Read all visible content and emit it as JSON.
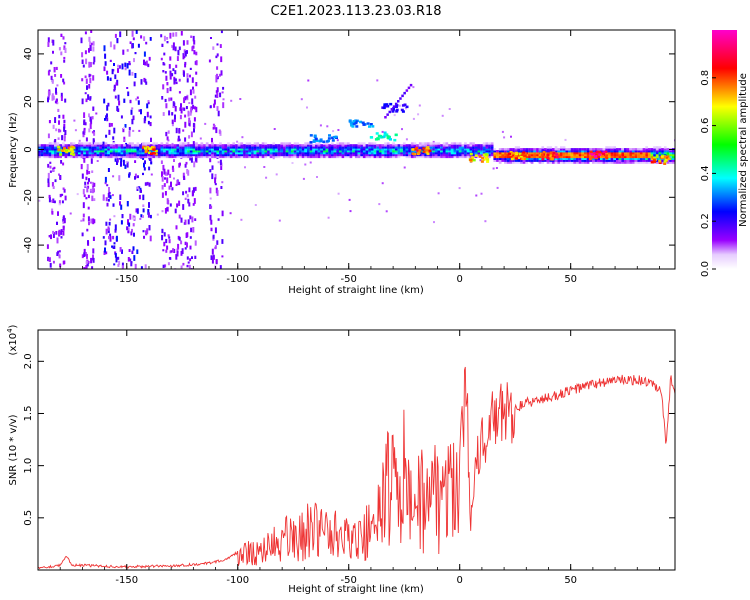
{
  "title": "C2E1.2023.113.23.03.R18",
  "colorbar": {
    "label": "Normalized spectral amplitude",
    "ticks": [
      "0.0",
      "0.2",
      "0.4",
      "0.6",
      "0.8"
    ],
    "tick_values": [
      0.0,
      0.2,
      0.4,
      0.6,
      0.8
    ],
    "range": [
      0,
      1
    ],
    "gradient": [
      "#ffffff",
      "#e6ccff",
      "#9900ff",
      "#0000ff",
      "#00ffff",
      "#00ff00",
      "#ffff00",
      "#ff0000",
      "#ff00cc"
    ]
  },
  "chart_data": [
    {
      "type": "heatmap",
      "name": "spectrogram",
      "xlabel": "Height of straight line (km)",
      "ylabel": "Frequency (Hz)",
      "xlim": [
        -190,
        97
      ],
      "ylim": [
        -50,
        50
      ],
      "xticks": [
        -150,
        -100,
        -50,
        0,
        50
      ],
      "yticks": [
        40,
        20,
        0,
        -20,
        -40
      ],
      "xtick_labels": [
        "-150",
        "-100",
        "-50",
        "0",
        "50"
      ],
      "ytick_labels": [
        "40",
        "20",
        "0",
        "-20",
        "-40"
      ],
      "main_band": {
        "center_hz": 0,
        "halfwidth_hz": 3
      },
      "features": [
        {
          "x": 62,
          "hz": -2,
          "amp": 1.0
        },
        {
          "x": 40,
          "hz": -2,
          "amp": 0.95
        },
        {
          "x": 25,
          "hz": -2,
          "amp": 0.85
        },
        {
          "x": -18,
          "hz": 0,
          "amp": 0.9
        },
        {
          "x": -140,
          "hz": 0,
          "amp": 0.85
        },
        {
          "x": -178,
          "hz": 0,
          "amp": 0.8
        },
        {
          "x": 8,
          "hz": -3,
          "amp": 0.8
        },
        {
          "x": 90,
          "hz": -4,
          "amp": 0.85
        },
        {
          "x": -45,
          "hz": 11,
          "amp": 0.35
        },
        {
          "x": -35,
          "hz": 6,
          "amp": 0.45
        },
        {
          "x": -30,
          "hz": 18,
          "amp": 0.25
        },
        {
          "x": -62,
          "hz": 5,
          "amp": 0.35
        }
      ]
    },
    {
      "type": "line",
      "name": "snr",
      "xlabel": "Height of straight line (km)",
      "ylabel": "SNR (10 * v/v)",
      "multiplier_label": "(x10",
      "multiplier_exp": "4",
      "xlim": [
        -190,
        97
      ],
      "ylim": [
        0,
        2.3
      ],
      "xticks": [
        -150,
        -100,
        -50,
        0,
        50
      ],
      "yticks": [
        0.5,
        1.0,
        1.5,
        2.0
      ],
      "xtick_labels": [
        "-150",
        "-100",
        "-50",
        "0",
        "50"
      ],
      "ytick_labels": [
        "0.5",
        "1.0",
        "1.5",
        "2.0"
      ],
      "color": "#ee3333",
      "series": [
        {
          "name": "SNR",
          "x": [
            -190,
            -185,
            -180,
            -177,
            -175,
            -165,
            -150,
            -130,
            -115,
            -105,
            -98,
            -90,
            -82,
            -75,
            -70,
            -65,
            -60,
            -55,
            -50,
            -45,
            -40,
            -36,
            -33,
            -31,
            -29,
            -27,
            -25,
            -23,
            -21,
            -18,
            -15,
            -12,
            -9,
            -6,
            -3,
            0,
            2,
            3,
            4,
            5,
            7,
            10,
            13,
            16,
            20,
            25,
            30,
            40,
            50,
            60,
            70,
            80,
            85,
            88,
            91,
            93,
            95,
            97
          ],
          "y": [
            0.02,
            0.03,
            0.05,
            0.13,
            0.05,
            0.04,
            0.03,
            0.04,
            0.06,
            0.1,
            0.2,
            0.28,
            0.38,
            0.45,
            0.5,
            0.55,
            0.5,
            0.45,
            0.4,
            0.45,
            0.55,
            0.7,
            1.05,
            1.4,
            1.1,
            0.9,
            1.3,
            0.85,
            0.95,
            1.0,
            1.05,
            1.1,
            1.0,
            1.15,
            1.1,
            1.25,
            1.5,
            2.0,
            1.0,
            0.45,
            1.1,
            1.2,
            1.35,
            1.45,
            1.5,
            1.55,
            1.6,
            1.65,
            1.72,
            1.78,
            1.82,
            1.82,
            1.8,
            1.75,
            1.7,
            1.15,
            1.85,
            1.65
          ]
        }
      ]
    }
  ]
}
